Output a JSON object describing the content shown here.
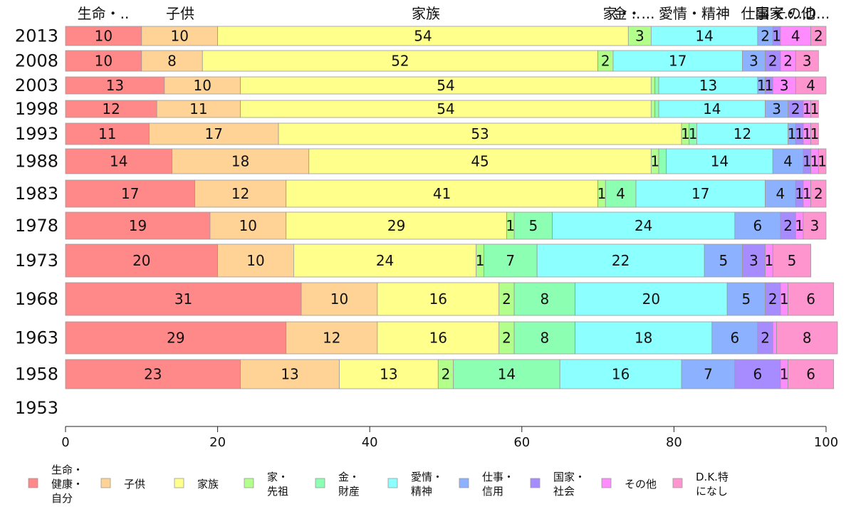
{
  "colors": [
    "#ff8888",
    "#ffd395",
    "#ffff8c",
    "#b2ff8c",
    "#8cffb2",
    "#8cffff",
    "#8cb2ff",
    "#a78cff",
    "#ff8cff",
    "#ff95cf"
  ],
  "legend": [
    "生命・\n健康・\n自分",
    "子供",
    "家族",
    "家・\n先祖",
    "金・\n財産",
    "愛情・\n精神",
    "仕事・\n信用",
    "国家・\n社会",
    "その他",
    "D.K.特\nになし"
  ],
  "top_labels": [
    "生命・..",
    "子供",
    "家族",
    "家・..",
    "金・...",
    "愛情・精神",
    "仕事・...",
    "国家・...",
    "その他",
    "D..."
  ],
  "chart_data": {
    "type": "bar",
    "orientation": "horizontal",
    "stacked": true,
    "xlim": [
      0,
      100
    ],
    "xticks": [
      "0",
      "20",
      "40",
      "60",
      "80",
      "100"
    ],
    "grid": false,
    "legend_position": "bottom",
    "categories": [
      "2013",
      "2008",
      "2003",
      "1998",
      "1993",
      "1988",
      "1983",
      "1978",
      "1973",
      "1968",
      "1963",
      "1958",
      "1953"
    ],
    "series": [
      {
        "name": "生命・健康・自分",
        "values": [
          10,
          10,
          13,
          12,
          11,
          14,
          17,
          19,
          20,
          31,
          29,
          23,
          null
        ]
      },
      {
        "name": "子供",
        "values": [
          10,
          8,
          10,
          11,
          17,
          18,
          12,
          10,
          10,
          10,
          12,
          13,
          null
        ]
      },
      {
        "name": "家族",
        "values": [
          54,
          52,
          54,
          54,
          53,
          45,
          41,
          29,
          24,
          16,
          16,
          13,
          null
        ]
      },
      {
        "name": "家・先祖",
        "values": [
          3,
          2,
          0.5,
          0.5,
          1,
          1,
          1,
          1,
          1,
          2,
          2,
          2,
          null
        ]
      },
      {
        "name": "金・財産",
        "values": [
          0,
          0,
          0.5,
          0.5,
          1,
          1,
          4,
          5,
          7,
          8,
          8,
          14,
          null
        ]
      },
      {
        "name": "愛情・精神",
        "values": [
          14,
          17,
          13,
          14,
          12,
          14,
          17,
          24,
          22,
          20,
          18,
          16,
          null
        ]
      },
      {
        "name": "仕事・信用",
        "values": [
          2,
          3,
          1,
          3,
          1,
          4,
          4,
          6,
          5,
          5,
          6,
          7,
          null
        ]
      },
      {
        "name": "国家・社会",
        "values": [
          1,
          2,
          1,
          2,
          1,
          1,
          1,
          2,
          3,
          2,
          2,
          6,
          null
        ]
      },
      {
        "name": "その他",
        "values": [
          4,
          2,
          3,
          1,
          1,
          1,
          1,
          1,
          1,
          1,
          0.5,
          1,
          null
        ]
      },
      {
        "name": "D.K.特になし",
        "values": [
          2,
          3,
          4,
          1,
          1,
          1,
          2,
          3,
          5,
          6,
          8,
          6,
          null
        ]
      }
    ],
    "labels": [
      [
        "10",
        "10",
        "54",
        "3",
        "",
        "14",
        "2",
        "1",
        "4",
        "2"
      ],
      [
        "10",
        "8",
        "52",
        "2",
        "",
        "17",
        "3",
        "2",
        "2",
        "3"
      ],
      [
        "13",
        "10",
        "54",
        "",
        "",
        "13",
        "1",
        "1",
        "3",
        "4"
      ],
      [
        "12",
        "11",
        "54",
        "",
        "",
        "14",
        "3",
        "2",
        "1",
        "1"
      ],
      [
        "11",
        "17",
        "53",
        "1",
        "1",
        "12",
        "1",
        "1",
        "1",
        "1"
      ],
      [
        "14",
        "18",
        "45",
        "1",
        "",
        "14",
        "4",
        "1",
        "1",
        "1"
      ],
      [
        "17",
        "12",
        "41",
        "1",
        "4",
        "17",
        "4",
        "1",
        "1",
        "2"
      ],
      [
        "19",
        "10",
        "29",
        "1",
        "5",
        "24",
        "6",
        "2",
        "1",
        "3"
      ],
      [
        "20",
        "10",
        "24",
        "1",
        "7",
        "22",
        "5",
        "3",
        "1",
        "5"
      ],
      [
        "31",
        "10",
        "16",
        "2",
        "8",
        "20",
        "5",
        "2",
        "1",
        "6"
      ],
      [
        "29",
        "12",
        "16",
        "2",
        "8",
        "18",
        "6",
        "2",
        "",
        "8"
      ],
      [
        "23",
        "13",
        "13",
        "2",
        "14",
        "16",
        "7",
        "6",
        "1",
        "6"
      ],
      [
        "",
        "",
        "",
        "",
        "",
        "",
        "",
        "",
        "",
        ""
      ]
    ]
  }
}
